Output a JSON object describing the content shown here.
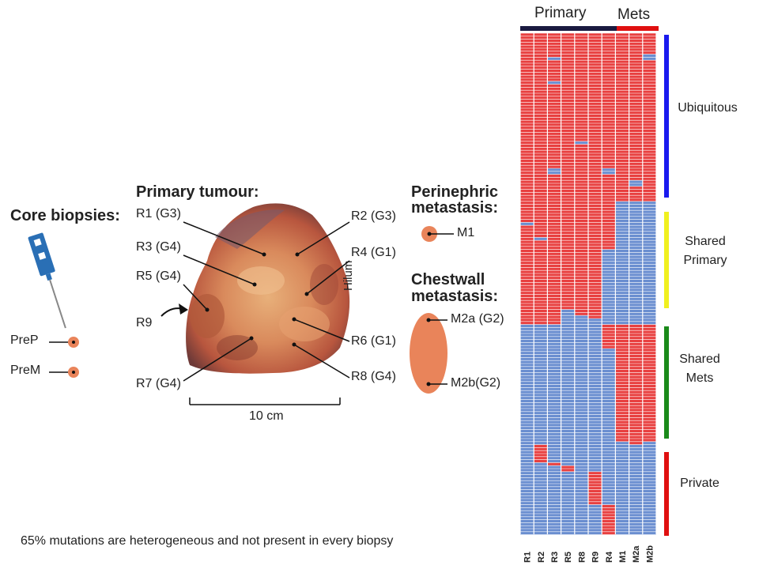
{
  "core": {
    "title": "Core biopsies:",
    "samples": [
      "PreP",
      "PreM"
    ]
  },
  "primary": {
    "title": "Primary tumour:",
    "left_labels": [
      "R1 (G3)",
      "R3 (G4)",
      "R5 (G4)",
      "R9",
      "R7 (G4)"
    ],
    "right_labels": [
      "R2 (G3)",
      "R4 (G1)",
      "R6 (G1)",
      "R8 (G4)"
    ],
    "hilum": "Hilum",
    "scale": "10 cm"
  },
  "perinephric": {
    "title_line1": "Perinephric",
    "title_line2": "metastasis:",
    "sample": "M1"
  },
  "chestwall": {
    "title_line1": "Chestwall",
    "title_line2": "metastasis:",
    "samples": [
      "M2a (G2)",
      "M2b(G2)"
    ]
  },
  "heatmap": {
    "group_labels": [
      "Primary",
      "Mets"
    ],
    "columns": [
      "R1",
      "R2",
      "R3",
      "R5",
      "R8",
      "R9",
      "R4",
      "M1",
      "M2a",
      "M2b"
    ],
    "categories": [
      {
        "label_line1": "Ubiquitous",
        "label_line2": "",
        "color": "#1a1aee"
      },
      {
        "label_line1": "Shared",
        "label_line2": "Primary",
        "color": "#f0f020"
      },
      {
        "label_line1": "Shared",
        "label_line2": "Mets",
        "color": "#1a8a1a"
      },
      {
        "label_line1": "Private",
        "label_line2": "",
        "color": "#e01010"
      }
    ],
    "colors": {
      "present": "#e84040",
      "absent": "#6a8ed0",
      "primary_bar": "#1a1a40",
      "mets_bar": "#e01010"
    }
  },
  "caption": "65% mutations are heterogeneous and not present in every biopsy"
}
